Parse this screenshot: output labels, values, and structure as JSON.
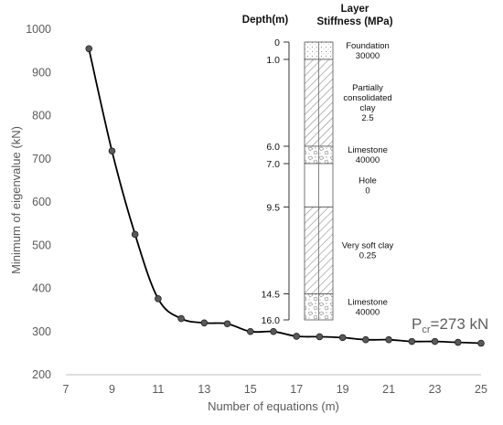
{
  "chart_data": {
    "type": "line",
    "xlabel": "Number of equations (m)",
    "ylabel": "Minimum of eigenvalue (kN)",
    "xlim": [
      7,
      25
    ],
    "ylim": [
      200,
      1000
    ],
    "xticks": [
      "7",
      "9",
      "11",
      "13",
      "15",
      "17",
      "19",
      "21",
      "23",
      "25"
    ],
    "yticks": [
      "200",
      "300",
      "400",
      "500",
      "600",
      "700",
      "800",
      "900",
      "1000"
    ],
    "grid": false,
    "series": [
      {
        "x": [
          8,
          9,
          10,
          11,
          12,
          13,
          14,
          15,
          16,
          17,
          18,
          19,
          20,
          21,
          22,
          23,
          24,
          25
        ],
        "y": [
          955,
          718,
          525,
          376,
          330,
          320,
          318,
          300,
          300,
          289,
          288,
          286,
          281,
          281,
          277,
          277,
          275,
          273
        ]
      }
    ],
    "annotation": {
      "main": "P",
      "sub": "cr",
      "rest": "=273 kN"
    }
  },
  "inset": {
    "depth_header": "Depth(m)",
    "layer_header_line1": "Layer",
    "layer_header_line2": "Stiffness (MPa)",
    "depth_labels": [
      "0",
      "1.0",
      "6.0",
      "7.0",
      "9.5",
      "14.5",
      "16.0"
    ],
    "layers": [
      {
        "lines": [
          "Foundation",
          "30000"
        ],
        "pattern": "dots"
      },
      {
        "lines": [
          "Partially",
          "consolidated",
          "clay",
          "2.5"
        ],
        "pattern": "hatch"
      },
      {
        "lines": [
          "Limestone",
          "40000"
        ],
        "pattern": "rock"
      },
      {
        "lines": [
          "Hole",
          "0"
        ],
        "pattern": "hole"
      },
      {
        "lines": [
          "Very soft clay",
          "0.25"
        ],
        "pattern": "hatch"
      },
      {
        "lines": [
          "Limestone",
          "40000"
        ],
        "pattern": "rock"
      }
    ]
  },
  "colors": {
    "line": "#000000",
    "marker": "#595959",
    "axis": "#bfbfbf",
    "text": "#5a5a5a"
  }
}
